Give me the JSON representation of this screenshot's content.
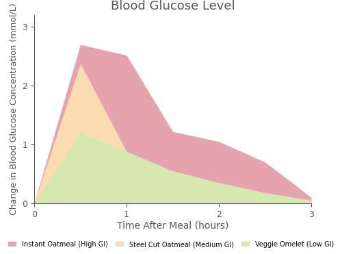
{
  "chart_data": {
    "type": "area",
    "title": "Blood Glucose Level",
    "x_label": "Time After Meal (hours)",
    "y_label": "Change in Blood Glucose Concentration (mmol/L)",
    "x": [
      0,
      0.5,
      1,
      1.5,
      2,
      2.5,
      3
    ],
    "series": [
      {
        "name": "Instant Oatmeal (High GI)",
        "color": "#e5a3ad",
        "values": [
          0,
          2.7,
          2.52,
          1.22,
          1.05,
          0.7,
          0.1
        ]
      },
      {
        "name": "Steel Cut Oatmeal (Medium GI)",
        "color": "#fbdcb0",
        "values": [
          0,
          2.38,
          0.88,
          0.08,
          0,
          0,
          0
        ]
      },
      {
        "name": "Veggie Omelet (Low GI)",
        "color": "#d4e8b0",
        "values": [
          0,
          1.2,
          0.88,
          0.55,
          0.35,
          0.18,
          0.05
        ]
      }
    ],
    "xlim": [
      0,
      3
    ],
    "xticks": [
      0,
      1,
      2,
      3
    ],
    "ylim": [
      0,
      3.2
    ],
    "yticks": [
      0,
      1,
      2,
      3
    ],
    "grid": false,
    "legend": "lower center"
  }
}
